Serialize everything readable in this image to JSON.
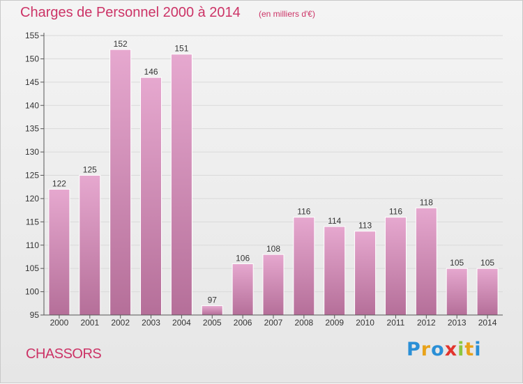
{
  "header": {
    "title": "Charges de Personnel 2000 à 2014",
    "unit_note": "(en milliers d'€)"
  },
  "footer": {
    "commune": "CHASSORS",
    "logo_text": "Proxiti",
    "logo_colors": [
      "#2a8fd6",
      "#e8a21a",
      "#2a8fd6",
      "#e2342d",
      "#8cc63f",
      "#e8a21a",
      "#2a8fd6"
    ]
  },
  "colors": {
    "title": "#cc3366",
    "bar_light": "#e6a8cf",
    "bar_dark": "#b56f99",
    "grid": "#d9d9d9",
    "axis": "#555555"
  },
  "chart_data": {
    "type": "bar",
    "title": "Charges de Personnel 2000 à 2014",
    "subtitle": "(en milliers d'€)",
    "xlabel": "",
    "ylabel": "",
    "categories": [
      "2000",
      "2001",
      "2002",
      "2003",
      "2004",
      "2005",
      "2006",
      "2007",
      "2008",
      "2009",
      "2010",
      "2011",
      "2012",
      "2013",
      "2014"
    ],
    "values": [
      122,
      125,
      152,
      146,
      151,
      97,
      106,
      108,
      116,
      114,
      113,
      116,
      118,
      105,
      105
    ],
    "ylim": [
      95,
      155
    ],
    "yticks": [
      95,
      100,
      105,
      110,
      115,
      120,
      125,
      130,
      135,
      140,
      145,
      150,
      155
    ],
    "grid": true,
    "legend": "none"
  }
}
